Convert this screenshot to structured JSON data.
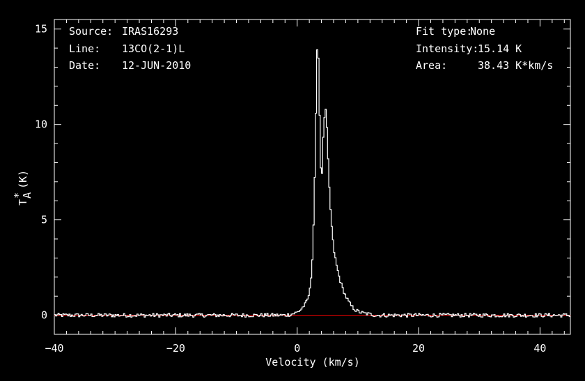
{
  "header_left": {
    "source_label": "Source:",
    "source_value": "IRAS16293",
    "line_label": "Line:",
    "line_value": "13CO(2-1)L",
    "date_label": "Date:",
    "date_value": "12-JUN-2010"
  },
  "header_right": {
    "fit_label": "Fit type:",
    "fit_value": "None",
    "intensity_label": "Intensity:",
    "intensity_value": "15.14 K",
    "area_label": "Area:",
    "area_value": "38.43 K*km/s"
  },
  "colors": {
    "background": "#000000",
    "axes": "#ffffff",
    "spectrum": "#ffffff",
    "baseline": "#ff0000"
  },
  "chart_data": {
    "type": "line",
    "xlabel": "Velocity (km/s)",
    "ylabel_main": "T",
    "ylabel_sup": "*",
    "ylabel_sub": "A",
    "ylabel_unit": "(K)",
    "xlim": [
      -40,
      45
    ],
    "ylim": [
      -1,
      15.5
    ],
    "xticks": [
      -40,
      -20,
      0,
      20,
      40
    ],
    "yticks": [
      0,
      5,
      10,
      15
    ],
    "baseline_y": 0,
    "x_step": 0.2,
    "peak_profile": [
      [
        -2.0,
        0.0
      ],
      [
        -1.0,
        0.05
      ],
      [
        0.0,
        0.15
      ],
      [
        0.6,
        0.3
      ],
      [
        1.0,
        0.45
      ],
      [
        1.4,
        0.6
      ],
      [
        1.8,
        0.9
      ],
      [
        2.2,
        1.5
      ],
      [
        2.6,
        3.5
      ],
      [
        3.0,
        8.5
      ],
      [
        3.2,
        12.5
      ],
      [
        3.4,
        15.14
      ],
      [
        3.6,
        12.0
      ],
      [
        3.8,
        9.0
      ],
      [
        4.0,
        6.5
      ],
      [
        4.2,
        8.5
      ],
      [
        4.4,
        10.0
      ],
      [
        4.6,
        10.8
      ],
      [
        4.8,
        10.6
      ],
      [
        5.0,
        9.0
      ],
      [
        5.2,
        7.2
      ],
      [
        5.6,
        5.0
      ],
      [
        6.0,
        3.5
      ],
      [
        6.5,
        2.6
      ],
      [
        7.0,
        1.9
      ],
      [
        7.5,
        1.4
      ],
      [
        8.0,
        1.0
      ],
      [
        8.5,
        0.7
      ],
      [
        9.0,
        0.45
      ],
      [
        9.5,
        0.3
      ],
      [
        10.0,
        0.2
      ],
      [
        11.0,
        0.1
      ],
      [
        12.0,
        0.05
      ],
      [
        13.0,
        0.0
      ]
    ],
    "noise_amplitude": 0.1
  }
}
